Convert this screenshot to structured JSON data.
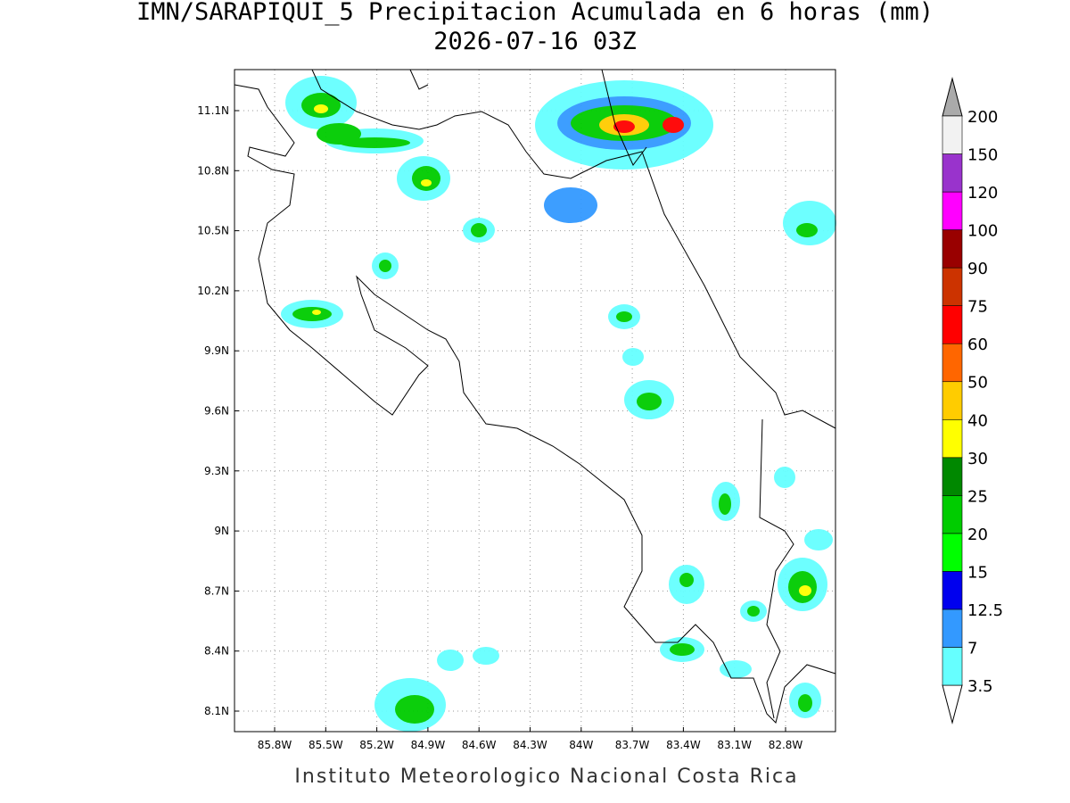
{
  "title": "IMN/SARAPIQUI_5 Precipitacion Acumulada en 6 horas (mm)",
  "subtitle": "2026-07-16 03Z",
  "footer": "Instituto Meteorologico Nacional Costa Rica",
  "map": {
    "xticks": [
      "85.8W",
      "85.5W",
      "85.2W",
      "84.9W",
      "84.6W",
      "84.3W",
      "84W",
      "83.7W",
      "83.4W",
      "83.1W",
      "82.8W"
    ],
    "yticks": [
      "11.1N",
      "10.8N",
      "10.5N",
      "10.2N",
      "9.9N",
      "9.6N",
      "9.3N",
      "9N",
      "8.7N",
      "8.4N",
      "8.1N"
    ],
    "grid": true
  },
  "colorbar": {
    "levels": [
      3.5,
      7,
      12.5,
      15,
      20,
      25,
      30,
      40,
      50,
      60,
      75,
      90,
      100,
      120,
      150,
      200
    ],
    "colors": [
      "#66ffff",
      "#3399ff",
      "#0000ee",
      "#00ff00",
      "#00cc00",
      "#008800",
      "#ffff00",
      "#ffcc00",
      "#ff6600",
      "#ff0000",
      "#cc3300",
      "#990000",
      "#ff00ff",
      "#9933cc",
      "#f2f2f2"
    ],
    "under_color": "#ffffff",
    "over_color": "#aaaaaa"
  }
}
